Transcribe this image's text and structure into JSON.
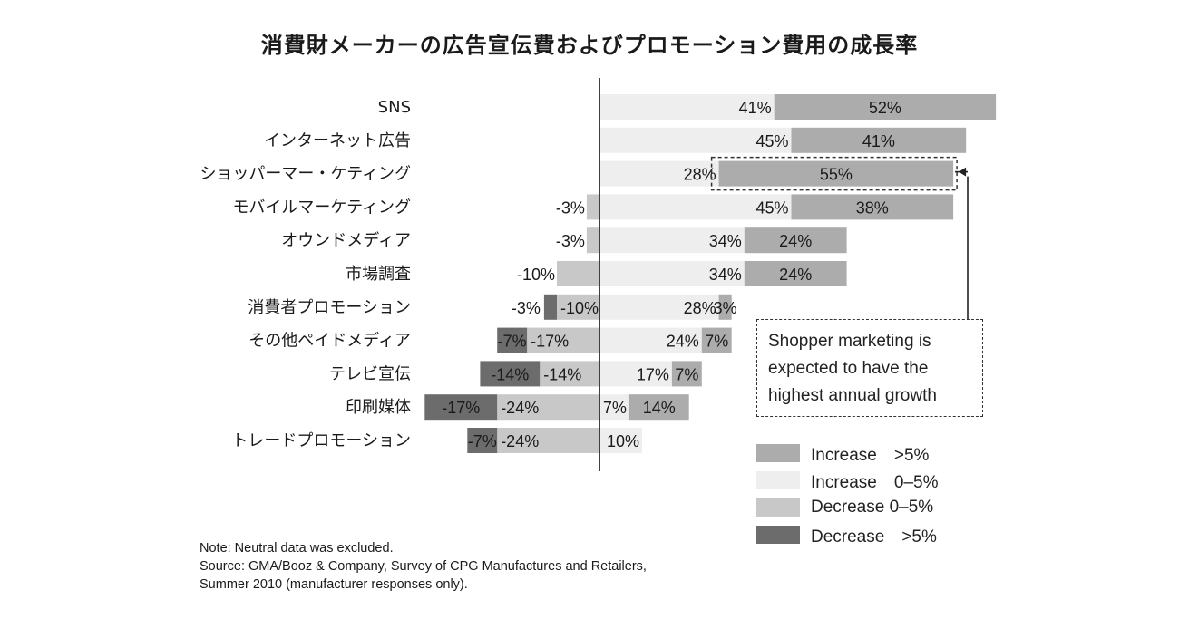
{
  "title": "消費財メーカーの広告宣伝費およびプロモーション費用の成長率",
  "colors": {
    "increase_gt5": "#acacac",
    "increase_0_5": "#eeeeee",
    "decrease_0_5": "#c8c8c8",
    "decrease_gt5": "#6c6c6c",
    "axis": "#111111"
  },
  "chart_data": {
    "type": "bar",
    "orientation": "horizontal-stacked-diverging",
    "categories": [
      "SNS",
      "インターネット広告",
      "ショッパーマー・ケティング",
      "モバイルマーケティング",
      "オウンドメディア",
      "市場調査",
      "消費者プロモーション",
      "その他ペイドメディア",
      "テレビ宣伝",
      "印刷媒体",
      "トレードプロモーション"
    ],
    "series": [
      {
        "name": "Increase >5%",
        "values": [
          52,
          41,
          55,
          38,
          24,
          24,
          3,
          7,
          7,
          14,
          null
        ]
      },
      {
        "name": "Increase 0–5%",
        "values": [
          41,
          45,
          28,
          45,
          34,
          34,
          28,
          24,
          17,
          7,
          10
        ]
      },
      {
        "name": "Decrease 0–5%",
        "values": [
          null,
          null,
          null,
          -3,
          -3,
          -10,
          -10,
          -17,
          -14,
          -24,
          -24
        ]
      },
      {
        "name": "Decrease >5%",
        "values": [
          null,
          null,
          null,
          null,
          null,
          null,
          -3,
          -7,
          -14,
          -17,
          -7
        ]
      }
    ],
    "highlight": {
      "category": "ショッパーマー・ケティング",
      "series": "Increase >5%"
    }
  },
  "callout": {
    "lines": [
      "Shopper marketing is",
      "expected to have the",
      "highest annual growth"
    ]
  },
  "legend": [
    {
      "label": "Increase　>5%",
      "color": "#acacac"
    },
    {
      "label": "Increase　0–5%",
      "color": "#eeeeee"
    },
    {
      "label": "Decrease  0–5%",
      "color": "#c8c8c8"
    },
    {
      "label": "Decrease　>5%",
      "color": "#6c6c6c"
    }
  ],
  "notes": [
    "Note: Neutral data was excluded.",
    "Source: GMA/Booz & Company, Survey of CPG Manufactures and Retailers,",
    "Summer 2010 (manufacturer responses only)."
  ]
}
